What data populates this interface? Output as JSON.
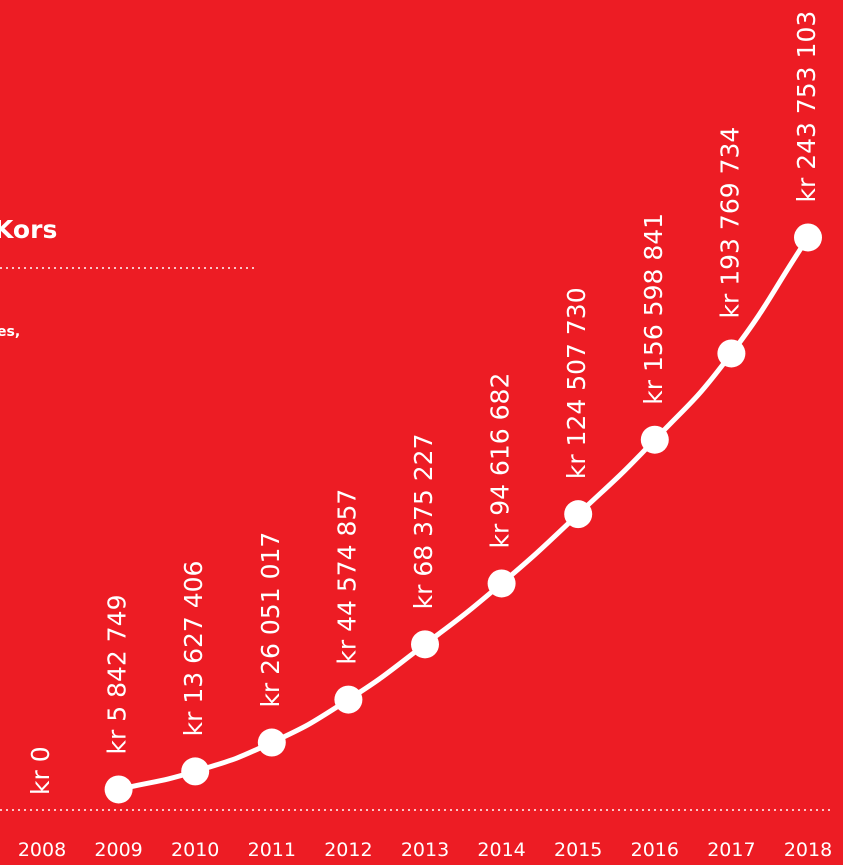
{
  "header": {
    "title": "Kors",
    "text": "es,"
  },
  "chart_data": {
    "type": "line",
    "categories": [
      "2008",
      "2009",
      "2010",
      "2011",
      "2012",
      "2013",
      "2014",
      "2015",
      "2016",
      "2017",
      "2018"
    ],
    "values": [
      0,
      5842749,
      13627406,
      26051017,
      44574857,
      68375227,
      94616682,
      124507730,
      156598841,
      193769734,
      243753103
    ],
    "value_labels": [
      "kr 0",
      "kr 5 842 749",
      "kr 13 627 406",
      "kr 26 051 017",
      "kr 44 574 857",
      "kr 68 375 227",
      "kr 94 616 682",
      "kr 124 507 730",
      "kr 156 598 841",
      "kr 193 769 734",
      "kr 243 753 103"
    ],
    "color": "#ffffff",
    "ylim": [
      0,
      250000000
    ]
  }
}
